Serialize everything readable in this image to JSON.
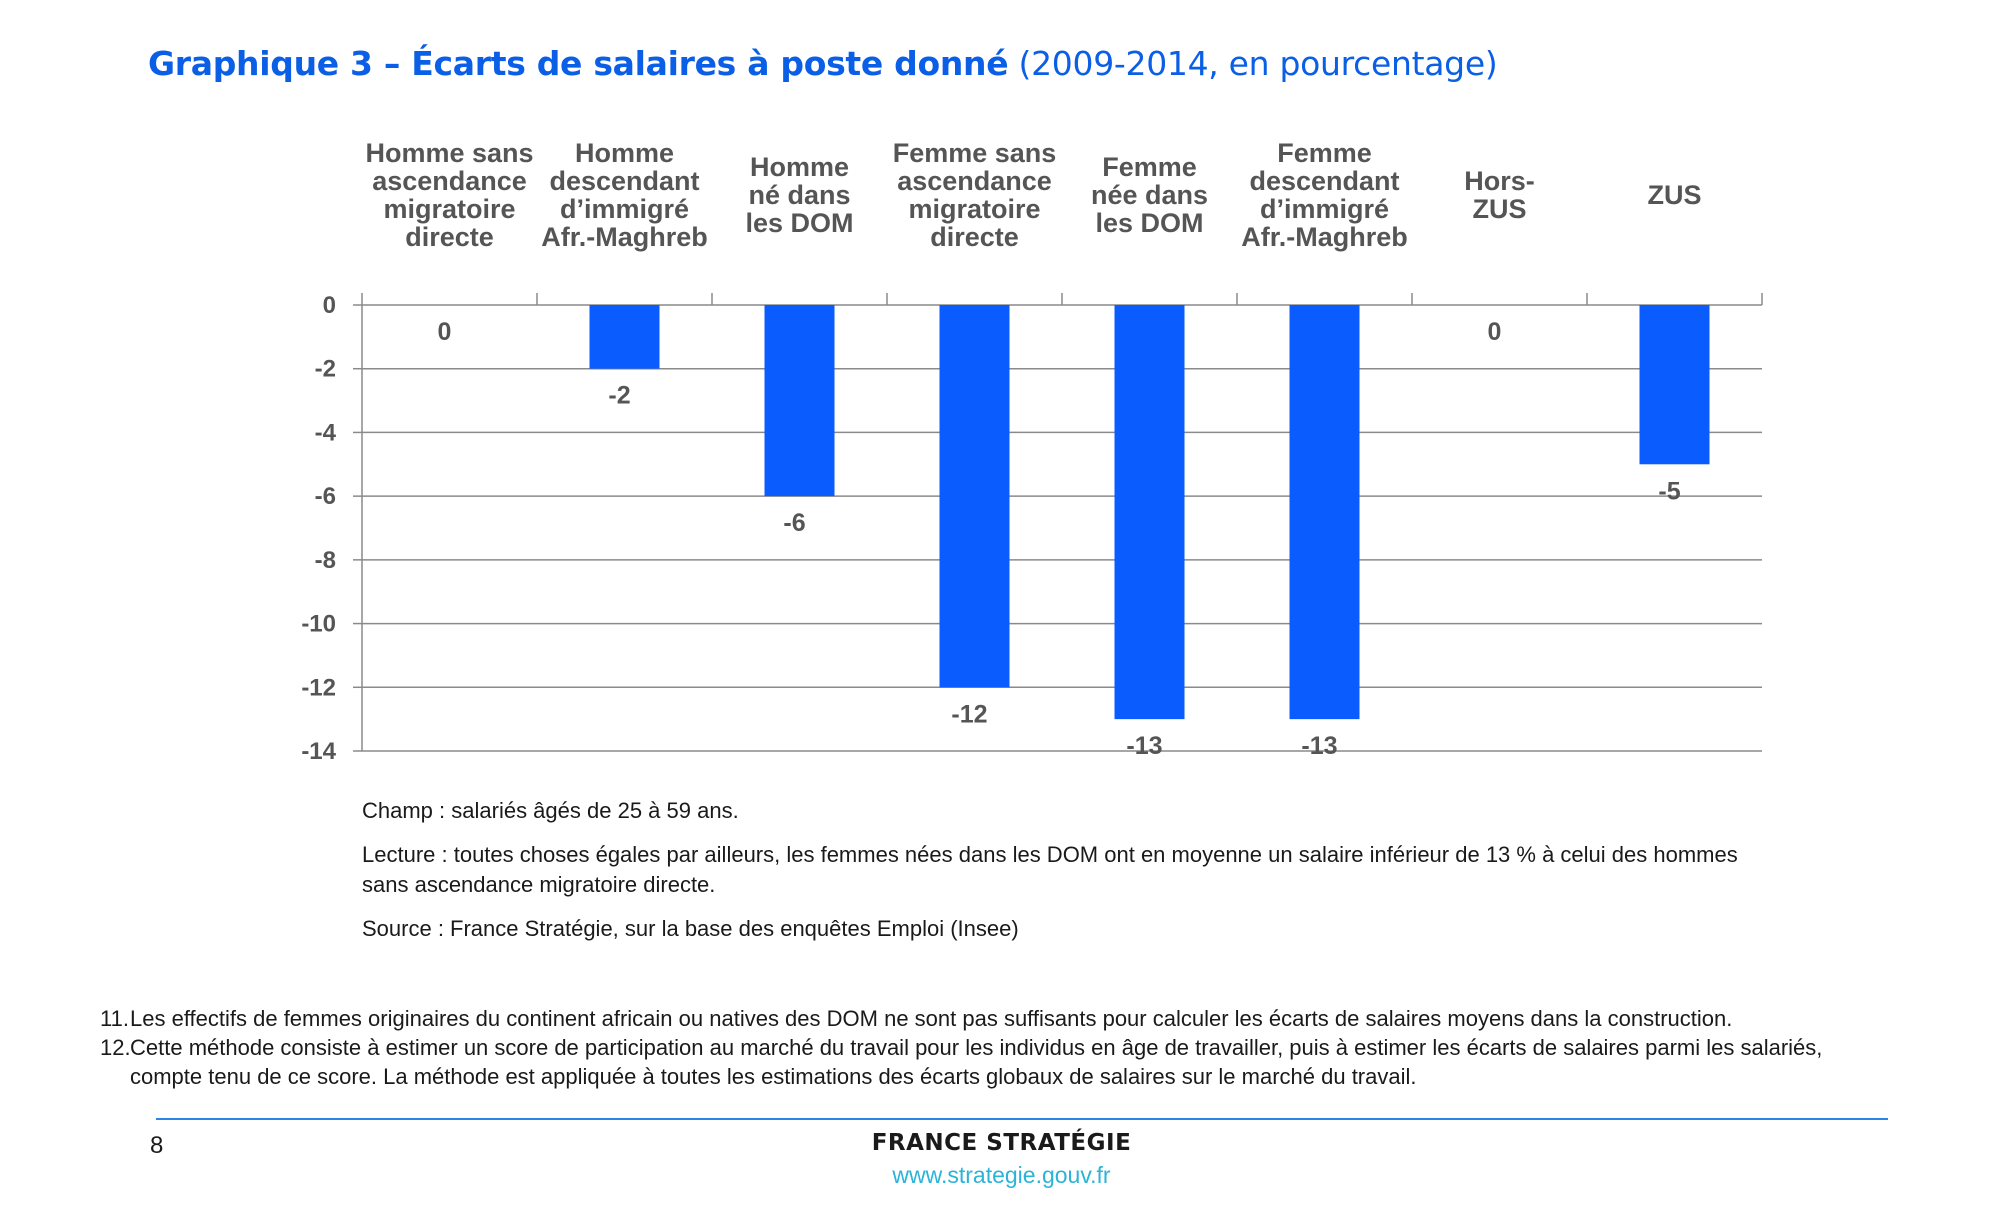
{
  "header": {
    "title_bold": "Graphique 3 – Écarts de salaires à poste donné",
    "title_rest": "(2009-2014, en pourcentage)"
  },
  "colors": {
    "accent": "#0a5fe6",
    "bar": "#0a5cff",
    "url": "#2ab4d8",
    "rule": "#2a86e6"
  },
  "chart_data": {
    "type": "bar",
    "title": "Graphique 3 – Écarts de salaires à poste donné (2009-2014, en pourcentage)",
    "categories": [
      "Homme sans ascendance migratoire directe",
      "Homme descendant d’immigré Afr.-Maghreb",
      "Homme né dans les DOM",
      "Femme sans ascendance migratoire directe",
      "Femme née dans les DOM",
      "Femme descendant d’immigré Afr.-Maghreb",
      "Hors-ZUS",
      "ZUS"
    ],
    "category_label_lines": [
      [
        "Homme sans",
        "ascendance",
        "migratoire",
        "directe"
      ],
      [
        "Homme",
        "descendant",
        "d’immigré",
        "Afr.-Maghreb"
      ],
      [
        "Homme",
        "né dans",
        "les DOM"
      ],
      [
        "Femme sans",
        "ascendance",
        "migratoire",
        "directe"
      ],
      [
        "Femme",
        "née dans",
        "les DOM"
      ],
      [
        "Femme",
        "descendant",
        "d’immigré",
        "Afr.-Maghreb"
      ],
      [
        "Hors-",
        "ZUS"
      ],
      [
        "ZUS"
      ]
    ],
    "values": [
      0,
      -2,
      -6,
      -12,
      -13,
      -13,
      0,
      -5
    ],
    "data_labels": [
      "0",
      "-2",
      "-6",
      "-12",
      "-13",
      "-13",
      "0",
      "-5"
    ],
    "ylim": [
      -14,
      0
    ],
    "yticks": [
      0,
      -2,
      -4,
      -6,
      -8,
      -10,
      -12,
      -14
    ],
    "ytick_labels": [
      "0",
      "-2",
      "-4",
      "-6",
      "-8",
      "-10",
      "-12",
      "-14"
    ],
    "category_axis_position": "top",
    "grid": true,
    "legend": "none",
    "xlabel": "",
    "ylabel": ""
  },
  "notes": {
    "champ": "Champ : salariés âgés de 25 à 59 ans.",
    "lecture": "Lecture : toutes choses égales par ailleurs, les femmes nées dans les DOM ont en moyenne un salaire inférieur de 13 % à celui des hommes sans ascendance migratoire directe.",
    "source": "Source : France Stratégie, sur la base des enquêtes Emploi (Insee)"
  },
  "footnotes": [
    {
      "num": "11.",
      "text": "Les effectifs de femmes originaires du continent africain ou natives des DOM ne sont pas suffisants pour calculer les écarts de salaires moyens dans la construction."
    },
    {
      "num": "12.",
      "text": "Cette méthode consiste à estimer un score de participation au marché du travail pour les individus en âge de travailler, puis à estimer les écarts de salaires parmi les salariés, compte tenu de ce score. La méthode est appliquée à toutes les estimations des écarts globaux de salaires sur le marché du travail."
    }
  ],
  "footer": {
    "page_number": "8",
    "brand": "FRANCE STRATÉGIE",
    "url": "www.strategie.gouv.fr"
  }
}
